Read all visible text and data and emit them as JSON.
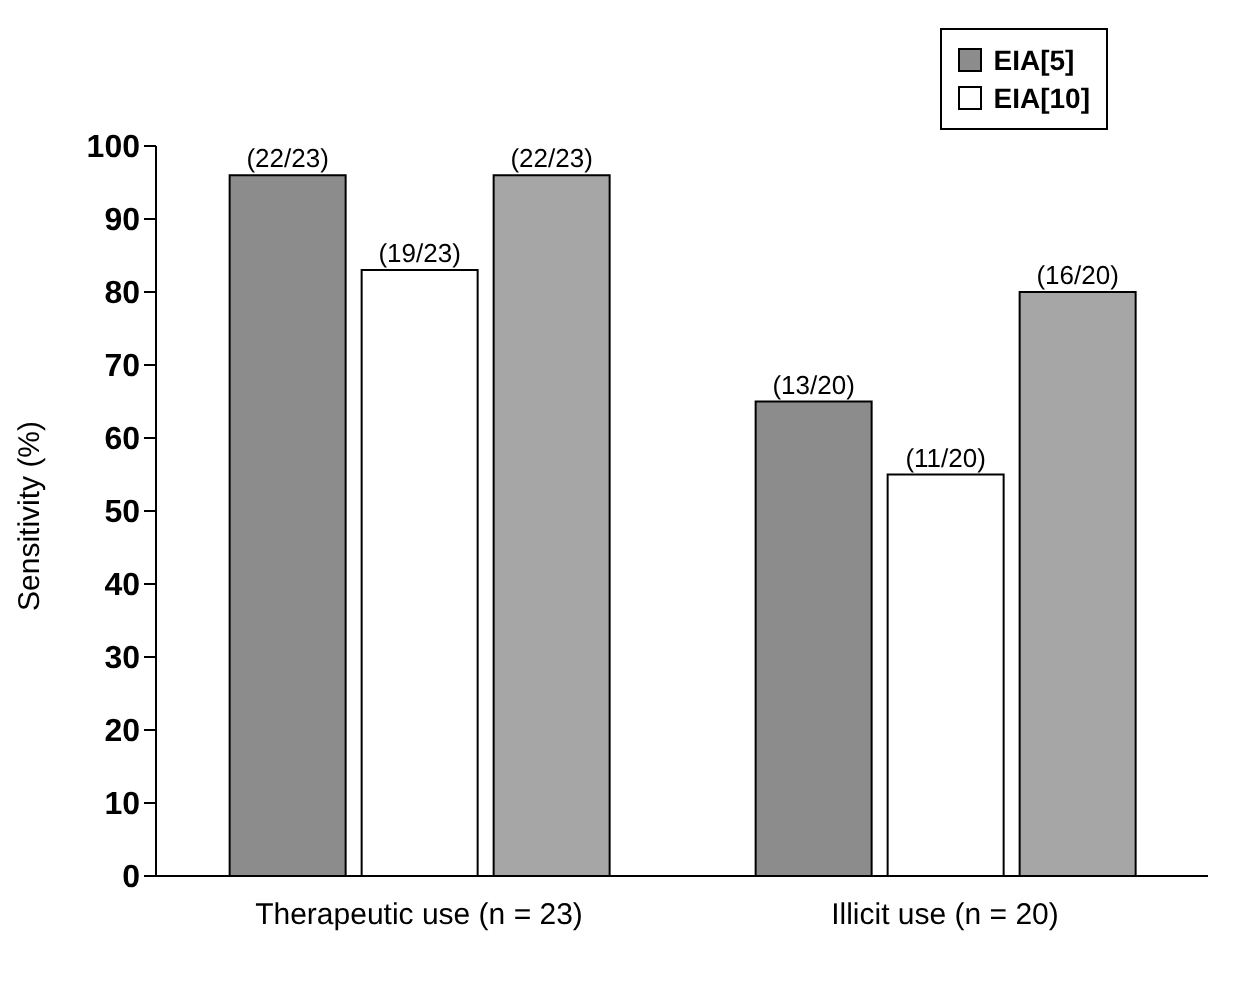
{
  "chart_data": {
    "type": "bar",
    "ylabel": "Sensitivity (%)",
    "categories": [
      "Therapeutic use (n = 23)",
      "Illicit use (n = 20)"
    ],
    "series": [
      {
        "name": "EIA[5]",
        "color": "#8c8c8c",
        "values": [
          96,
          65
        ],
        "value_labels": [
          "(22/23)",
          "(13/20)"
        ]
      },
      {
        "name": "EIA[10]",
        "color": "#ffffff",
        "values": [
          83,
          55
        ],
        "value_labels": [
          "(19/23)",
          "(11/20)"
        ]
      },
      {
        "color": "#a6a6a6",
        "values": [
          96,
          80
        ],
        "value_labels": [
          "(22/23)",
          "(16/20)"
        ]
      }
    ],
    "ylim": [
      0,
      100
    ],
    "yticks": [
      0,
      10,
      20,
      30,
      40,
      50,
      60,
      70,
      80,
      90,
      100
    ],
    "grid": false,
    "legend": "top right"
  }
}
